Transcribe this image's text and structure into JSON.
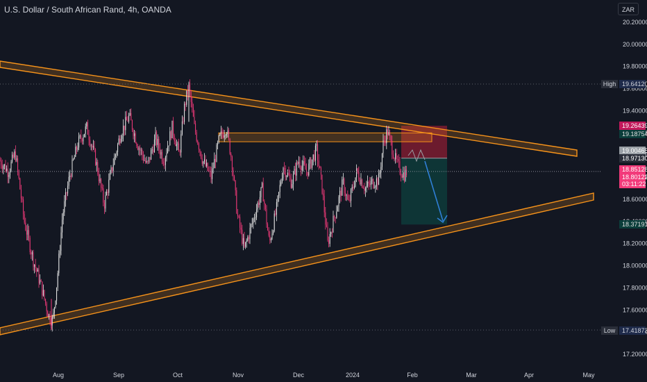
{
  "header": {
    "title": "U.S. Dollar / South African Rand, 4h, OANDA",
    "currency_button": "ZAR"
  },
  "colors": {
    "background": "#131722",
    "up": "#e8e8e8",
    "down": "#f23a7a",
    "trendline": "#f7931a",
    "stop_zone": "#8b1e33",
    "target_zone": "#0e3b3a",
    "arrow": "#2f7fd6"
  },
  "chart_data": {
    "type": "line",
    "symbol": "USDZAR",
    "timeframe": "4h",
    "ylim": [
      17.05,
      20.35
    ],
    "y_ticks": [
      "20.20000",
      "20.00000",
      "19.80000",
      "19.60000",
      "19.40000",
      "19.20000",
      "19.00000",
      "18.80000",
      "18.60000",
      "18.40000",
      "18.20000",
      "18.00000",
      "17.80000",
      "17.60000",
      "17.40000",
      "17.20000"
    ],
    "x_ticks": [
      "Aug",
      "Sep",
      "Oct",
      "Nov",
      "Dec",
      "2024",
      "Feb",
      "Mar",
      "Apr",
      "May"
    ],
    "price_path": [
      [
        0,
        18.95
      ],
      [
        12,
        18.85
      ],
      [
        22,
        19.02
      ],
      [
        35,
        18.4
      ],
      [
        48,
        18.05
      ],
      [
        60,
        17.8
      ],
      [
        70,
        17.55
      ],
      [
        76,
        17.5
      ],
      [
        82,
        17.85
      ],
      [
        90,
        18.45
      ],
      [
        100,
        18.8
      ],
      [
        112,
        19.1
      ],
      [
        125,
        19.25
      ],
      [
        138,
        18.95
      ],
      [
        150,
        18.55
      ],
      [
        162,
        18.9
      ],
      [
        174,
        19.2
      ],
      [
        186,
        19.35
      ],
      [
        198,
        19.1
      ],
      [
        212,
        18.9
      ],
      [
        224,
        19.15
      ],
      [
        236,
        18.95
      ],
      [
        248,
        19.25
      ],
      [
        258,
        19.0
      ],
      [
        266,
        19.45
      ],
      [
        272,
        19.62
      ],
      [
        280,
        19.25
      ],
      [
        292,
        18.95
      ],
      [
        304,
        18.8
      ],
      [
        316,
        19.15
      ],
      [
        326,
        19.25
      ],
      [
        334,
        18.95
      ],
      [
        342,
        18.45
      ],
      [
        352,
        18.15
      ],
      [
        364,
        18.4
      ],
      [
        378,
        18.7
      ],
      [
        388,
        18.2
      ],
      [
        398,
        18.5
      ],
      [
        408,
        18.9
      ],
      [
        420,
        18.75
      ],
      [
        430,
        18.95
      ],
      [
        442,
        18.85
      ],
      [
        456,
        19.05
      ],
      [
        464,
        18.7
      ],
      [
        472,
        18.2
      ],
      [
        482,
        18.45
      ],
      [
        494,
        18.75
      ],
      [
        502,
        18.55
      ],
      [
        514,
        18.85
      ],
      [
        526,
        18.7
      ],
      [
        536,
        18.75
      ],
      [
        546,
        18.78
      ],
      [
        552,
        19.1
      ],
      [
        558,
        19.22
      ],
      [
        564,
        19.08
      ],
      [
        570,
        18.95
      ],
      [
        576,
        18.87
      ],
      [
        582,
        18.82
      ],
      [
        586,
        18.85
      ]
    ],
    "series": [
      {
        "name": "",
        "values": [
          19.6412,
          17.41873
        ]
      }
    ],
    "price_labels": [
      {
        "label": "High",
        "value": "19.64120"
      },
      {
        "label": "",
        "value": "19.26439"
      },
      {
        "label": "",
        "value": "19.18754"
      },
      {
        "label": "",
        "value": "19.00465"
      },
      {
        "label": "",
        "value": "18.97130"
      },
      {
        "label": "",
        "value": "18.85128"
      },
      {
        "label": "",
        "value": "18.80122"
      },
      {
        "label": "",
        "value": "03:11:22"
      },
      {
        "label": "",
        "value": "18.37191"
      },
      {
        "label": "Low",
        "value": "17.41873"
      }
    ],
    "high": 19.6412,
    "low": 17.41873,
    "current_price": 18.85128,
    "position": {
      "entry": 18.9713,
      "stop": 19.26439,
      "target": 18.37191
    },
    "resistance_zone": [
      19.12,
      19.2
    ],
    "grid": false
  }
}
